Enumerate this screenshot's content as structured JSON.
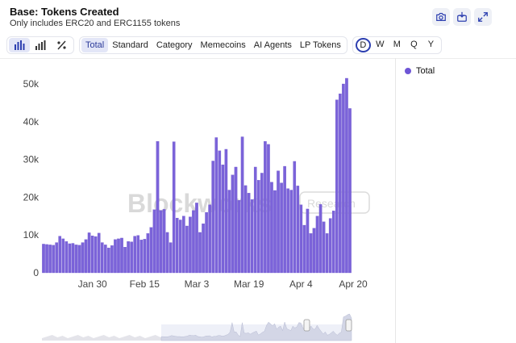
{
  "header": {
    "title": "Base: Tokens Created",
    "subtitle": "Only includes ERC20 and ERC1155 tokens"
  },
  "toolbar": {
    "chart_types": [
      {
        "icon": "bar-chart-icon",
        "active": true
      },
      {
        "icon": "bar-chart-alt-icon",
        "active": false
      },
      {
        "icon": "percent-icon",
        "active": false
      }
    ],
    "filters": [
      {
        "label": "Total",
        "active": true
      },
      {
        "label": "Standard",
        "active": false
      },
      {
        "label": "Category",
        "active": false
      },
      {
        "label": "Memecoins",
        "active": false
      },
      {
        "label": "AI Agents",
        "active": false
      },
      {
        "label": "LP Tokens",
        "active": false
      }
    ],
    "periods": [
      {
        "label": "D",
        "active": true
      },
      {
        "label": "W",
        "active": false
      },
      {
        "label": "M",
        "active": false
      },
      {
        "label": "Q",
        "active": false
      },
      {
        "label": "Y",
        "active": false
      }
    ]
  },
  "actions": [
    "camera-icon",
    "image-download-icon",
    "expand-icon"
  ],
  "watermark": {
    "brand": "Blockworks",
    "suffix": "Research"
  },
  "colors": {
    "bar": "#7b63d9",
    "bar_stroke": "#6a52cc",
    "accent": "#2d3fb0"
  },
  "chart_data": {
    "type": "bar",
    "series": [
      {
        "name": "Total",
        "color": "#6e55d6"
      }
    ],
    "ylim": [
      0,
      50000
    ],
    "y_ticks": [
      0,
      10000,
      20000,
      30000,
      40000,
      50000
    ],
    "y_tick_labels": [
      "0",
      "10k",
      "20k",
      "30k",
      "40k",
      "50k"
    ],
    "x_tick_labels": [
      "Jan 30",
      "Feb 15",
      "Mar 3",
      "Mar 19",
      "Apr 4",
      "Apr 20"
    ],
    "x_tick_bar_index": [
      15,
      31,
      47,
      63,
      79,
      95
    ],
    "values": [
      7600,
      7500,
      7400,
      7300,
      8000,
      9700,
      9000,
      8300,
      7700,
      7800,
      7400,
      7300,
      8000,
      8800,
      10600,
      9800,
      9600,
      10500,
      8000,
      7400,
      6600,
      7200,
      8800,
      9000,
      9200,
      6800,
      8300,
      8200,
      9700,
      9900,
      8700,
      8900,
      10400,
      12000,
      16700,
      34800,
      16500,
      16800,
      10700,
      8000,
      34700,
      14500,
      14000,
      15000,
      12400,
      14800,
      16500,
      18500,
      10700,
      13000,
      16000,
      18000,
      29600,
      35800,
      32300,
      28600,
      32700,
      21900,
      25900,
      28000,
      19200,
      36000,
      23100,
      21100,
      19400,
      28000,
      24500,
      26400,
      34800,
      34000,
      24000,
      21800,
      27000,
      23800,
      28200,
      22300,
      21900,
      29500,
      23000,
      18000,
      12600,
      16900,
      10400,
      11800,
      15000,
      18100,
      13500,
      10400,
      14400,
      16400,
      45800,
      47400,
      50000,
      51500,
      43500
    ]
  },
  "navigator": {
    "visible": true
  }
}
